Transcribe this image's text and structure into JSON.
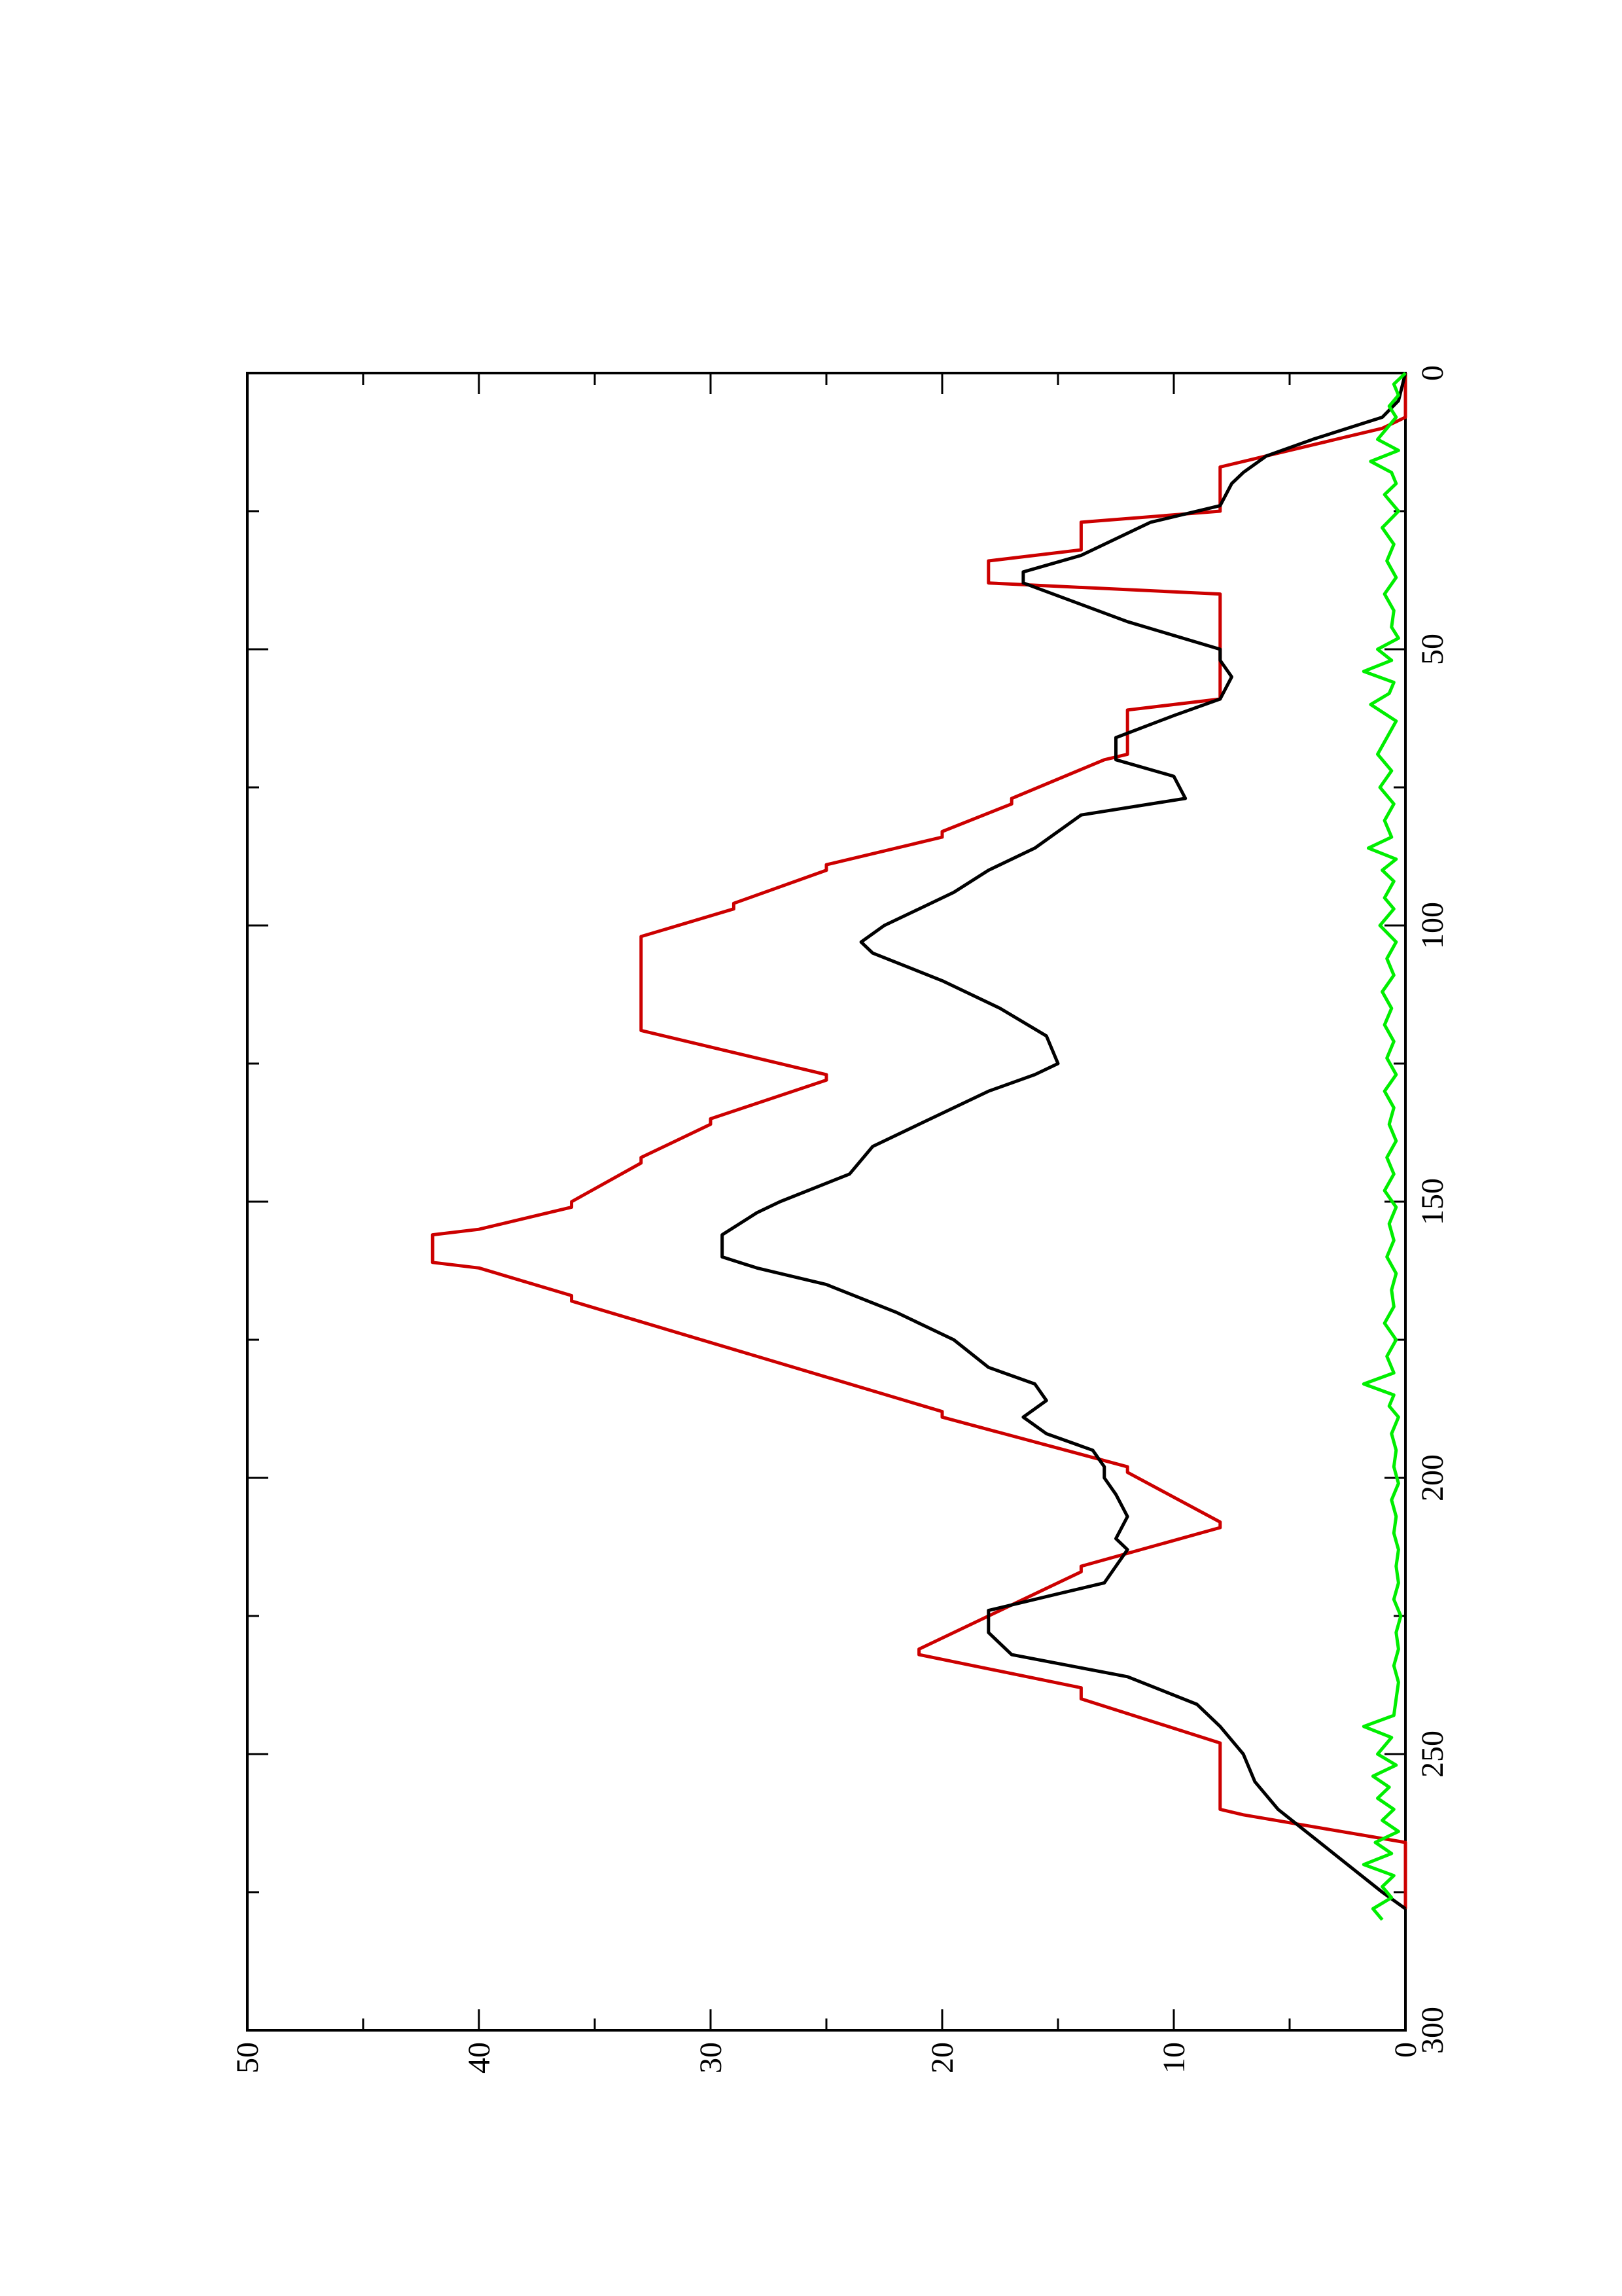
{
  "chart_data": {
    "type": "line",
    "orientation": "rotated-90-ccw",
    "title": "",
    "xlabel": "",
    "ylabel": "",
    "xlim": [
      0,
      300
    ],
    "ylim": [
      0,
      50
    ],
    "x_ticks": [
      0,
      50,
      100,
      150,
      200,
      250,
      300
    ],
    "x_tick_labels": [
      "0",
      "50",
      "100",
      "150",
      "200",
      "250",
      "300"
    ],
    "y_ticks": [
      0,
      10,
      20,
      30,
      40,
      50
    ],
    "y_tick_labels": [
      "0",
      "10",
      "20",
      "30",
      "40",
      "50"
    ],
    "grid": false,
    "legend": "none",
    "series": [
      {
        "color": "#cc0000",
        "x": [
          0,
          8,
          10,
          15,
          17,
          25,
          27,
          32,
          34,
          38,
          40,
          50,
          51,
          59,
          61,
          69,
          70,
          77,
          78,
          83,
          84,
          89,
          90,
          96,
          97,
          102,
          103,
          118,
          119,
          127,
          128,
          135,
          136,
          142,
          143,
          150,
          151,
          155,
          156,
          161,
          162,
          167,
          168,
          188,
          189,
          198,
          199,
          208,
          209,
          216,
          217,
          231,
          232,
          238,
          240,
          248,
          250,
          260,
          261,
          266,
          278
        ],
        "y": [
          0,
          0,
          1,
          6,
          8,
          8,
          14,
          14,
          18,
          18,
          8,
          8,
          8,
          8,
          12,
          12,
          13,
          17,
          17,
          20,
          20,
          25,
          25,
          29,
          29,
          33,
          33,
          33,
          33,
          25,
          25,
          30,
          30,
          33,
          33,
          36,
          36,
          40,
          42,
          42,
          40,
          36,
          36,
          20,
          20,
          12,
          12,
          8,
          8,
          14,
          14,
          21,
          21,
          14,
          14,
          8,
          8,
          8,
          7,
          0,
          0
        ]
      },
      {
        "color": "#000000",
        "x": [
          0,
          5,
          8,
          12,
          15,
          18,
          20,
          24,
          27,
          33,
          36,
          38,
          45,
          50,
          52,
          55,
          59,
          62,
          66,
          70,
          73,
          77,
          80,
          83,
          86,
          90,
          94,
          97,
          100,
          103,
          105,
          110,
          115,
          120,
          125,
          127,
          130,
          136,
          140,
          145,
          150,
          152,
          156,
          160,
          162,
          165,
          170,
          175,
          180,
          183,
          186,
          189,
          192,
          195,
          198,
          200,
          203,
          207,
          211,
          213,
          216,
          219,
          221,
          224,
          228,
          232,
          236,
          241,
          245,
          250,
          255,
          260,
          265,
          270,
          275,
          278
        ],
        "y": [
          0,
          0.3,
          1,
          4,
          6,
          7,
          7.5,
          8,
          11,
          14,
          16.5,
          16.5,
          12,
          8,
          8,
          7.5,
          8,
          10,
          12.5,
          12.5,
          10,
          9.5,
          14,
          15,
          16,
          18,
          19.5,
          21,
          22.5,
          23.5,
          23,
          20,
          17.5,
          15.5,
          15,
          16,
          18,
          21,
          23,
          24,
          27,
          28,
          29.5,
          29.5,
          28,
          25,
          22,
          19.5,
          18,
          16,
          15.5,
          16.5,
          15.5,
          13.5,
          13,
          13,
          12.5,
          12,
          12.5,
          12,
          12.5,
          13,
          15,
          18,
          18,
          17,
          12,
          9,
          8,
          7,
          6.5,
          5.5,
          4,
          2.5,
          1,
          0
        ]
      },
      {
        "color": "#00ee00",
        "x": [
          0,
          2,
          4,
          6,
          8,
          10,
          12,
          14,
          16,
          18,
          20,
          22,
          25,
          28,
          31,
          34,
          37,
          40,
          43,
          46,
          48,
          50,
          52,
          54,
          56,
          58,
          60,
          63,
          66,
          69,
          72,
          75,
          78,
          81,
          84,
          86,
          88,
          90,
          92,
          95,
          97,
          100,
          103,
          106,
          109,
          112,
          115,
          118,
          121,
          124,
          127,
          130,
          133,
          136,
          139,
          142,
          145,
          148,
          151,
          154,
          157,
          160,
          163,
          166,
          169,
          172,
          175,
          178,
          181,
          183,
          185,
          187,
          189,
          192,
          195,
          198,
          201,
          204,
          207,
          210,
          213,
          216,
          219,
          222,
          225,
          228,
          231,
          234,
          237,
          240,
          243,
          245,
          247,
          250,
          252,
          254,
          256,
          258,
          260,
          262,
          264,
          266,
          268,
          270,
          272,
          274,
          276,
          278,
          280
        ],
        "y": [
          0,
          0.5,
          0.3,
          0.7,
          0.4,
          0.8,
          1.2,
          0.3,
          1.5,
          0.6,
          0.4,
          0.9,
          0.3,
          1,
          0.5,
          0.8,
          0.4,
          0.9,
          0.5,
          0.6,
          0.3,
          1.2,
          0.6,
          1.8,
          0.5,
          0.7,
          1.5,
          0.4,
          0.8,
          1.2,
          0.6,
          1.1,
          0.5,
          0.9,
          0.6,
          1.6,
          0.4,
          1,
          0.5,
          0.9,
          0.5,
          1.1,
          0.4,
          0.8,
          0.5,
          1,
          0.6,
          0.9,
          0.5,
          0.8,
          0.4,
          0.9,
          0.5,
          0.7,
          0.4,
          0.8,
          0.5,
          0.9,
          0.4,
          0.7,
          0.5,
          0.8,
          0.4,
          0.6,
          0.5,
          0.9,
          0.4,
          0.8,
          0.5,
          1.8,
          0.5,
          0.7,
          0.3,
          0.6,
          0.4,
          0.5,
          0.3,
          0.6,
          0.4,
          0.5,
          0.3,
          0.4,
          0.3,
          0.5,
          0.2,
          0.4,
          0.3,
          0.5,
          0.3,
          0.4,
          0.5,
          1.8,
          0.6,
          1.2,
          0.4,
          1.4,
          0.7,
          1.2,
          0.5,
          1,
          0.3,
          1.3,
          0.6,
          1.8,
          0.5,
          1,
          0.6,
          1.4,
          1
        ]
      }
    ]
  }
}
